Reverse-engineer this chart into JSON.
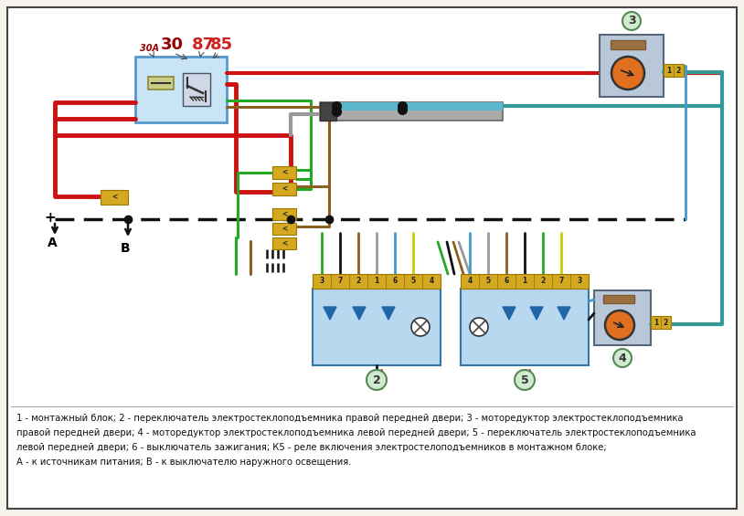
{
  "bg_color": "#f5f3ec",
  "border_color": "#444444",
  "caption_lines": [
    "1 - монтажный блок; 2 - переключатель электростеклоподъемника правой передней двери; 3 - моторедуктор электростеклоподъемника",
    "правой передней двери; 4 - моторедуктор электростеклоподъемника левой передней двери; 5 - переключатель электростеклоподъемника",
    "левой передней двери; 6 - выключатель зажигания; К5 - реле включения электростелоподъемников в монтажном блоке;",
    "А - к источникам питания; В - к выключателю наружного освещения."
  ],
  "caption_fontsize": 7.2,
  "diagram_bg": "#ffffff",
  "relay_box_color": "#c8e4f5",
  "connector_color": "#d4a820",
  "switch_color": "#b8d8f0",
  "wire_red": "#cc1111",
  "wire_green": "#22aa22",
  "wire_black": "#111111",
  "wire_brown": "#8B6020",
  "wire_blue": "#4499cc",
  "wire_gray": "#999999",
  "wire_teal": "#339999",
  "label_30a": "30A",
  "label_30": "30",
  "label_87": "87",
  "label_85": "85",
  "label_A": "A",
  "label_B": "B",
  "label_plus": "+",
  "circle_fc": "#d0ead0",
  "circle_ec": "#558855",
  "switch_pins_left": [
    "3",
    "7",
    "2",
    "1",
    "6",
    "5",
    "4"
  ],
  "switch_pins_right": [
    "4",
    "5",
    "6",
    "1",
    "2",
    "7",
    "3"
  ]
}
